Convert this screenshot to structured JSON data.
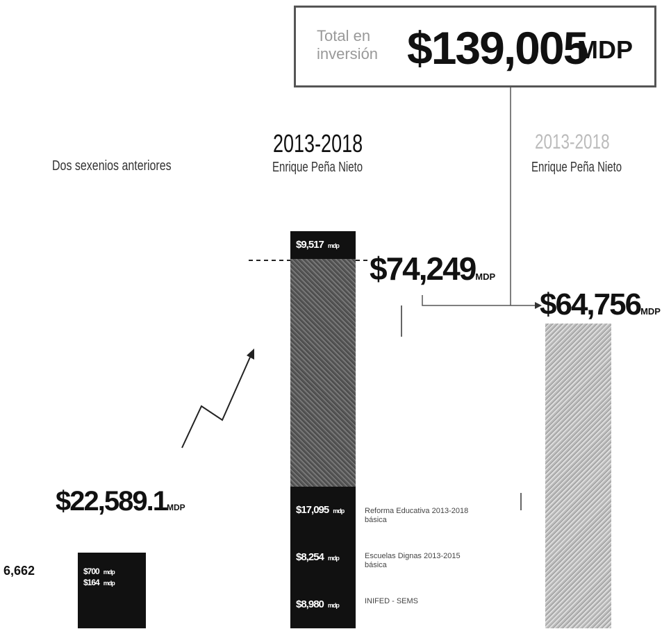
{
  "total": {
    "label": "Total en inversión",
    "amount": "$139,005",
    "unit": "MDP"
  },
  "columns": [
    {
      "title": "Dos sexenios anteriores",
      "amount": "$22,589.1",
      "unit": "MDP",
      "side_value": "6,662",
      "segments": [
        {
          "amount": "$700",
          "unit": "mdp"
        },
        {
          "amount": "$164",
          "unit": "mdp"
        }
      ]
    },
    {
      "period": "2013-2018",
      "title": "Enrique Peña Nieto",
      "amount": "$74,249",
      "unit": "MDP",
      "segments": [
        {
          "amount": "$9,517",
          "unit": "mdp"
        },
        {
          "amount": "$17,095",
          "unit": "mdp",
          "label": "Reforma Educativa 2013-2018 básica"
        },
        {
          "amount": "$8,254",
          "unit": "mdp",
          "label": "Escuelas Dignas 2013-2015 básica"
        },
        {
          "amount": "$8,980",
          "unit": "mdp",
          "label": "INIFED - SEMS"
        }
      ]
    },
    {
      "period": "2013-2018",
      "title": "Enrique Peña Nieto",
      "amount": "$64,756",
      "unit": "MDP"
    }
  ]
}
